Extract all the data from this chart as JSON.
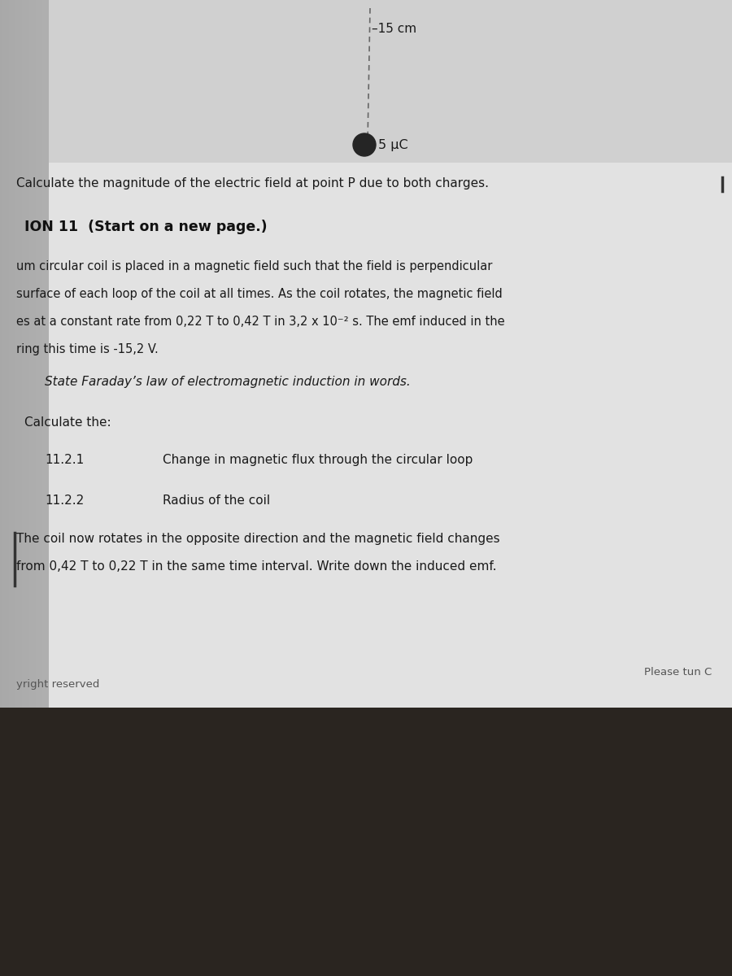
{
  "label_15cm": "–15 cm",
  "label_5uC": "5 μC",
  "line1": "Calculate the magnitude of the electric field at point P due to both charges.",
  "section_header": "ION 11  (Start on a new page.)",
  "para1_lines": [
    "um circular coil is placed in a magnetic field such that the field is perpendicular",
    "surface of each loop of the coil at all times. As the coil rotates, the magnetic field",
    "es at a constant rate from 0,22 T to 0,42 T in 3,2 x 10⁻² s. The emf induced in the",
    "ring this time is -15,2 V."
  ],
  "italic_line": "State Faraday’s law of electromagnetic induction in words.",
  "calc_label": "Calculate the:",
  "sub11_num": "11.2.1",
  "sub11_text": "Change in magnetic flux through the circular loop",
  "sub12_num": "11.2.2",
  "sub12_text": "Radius of the coil",
  "last_para_lines": [
    "The coil now rotates in the opposite direction and the magnetic field changes",
    "from 0,42 T to 0,22 T in the same time interval. Write down the induced emf."
  ],
  "footer_left": "yright reserved",
  "footer_right": "Please tun C",
  "text_color": "#1a1a1a",
  "header_color": "#111111",
  "page_color": "#e2e2e2",
  "page_top_color": "#d0d0d0",
  "left_shadow_color": "#b0b0b0",
  "bottom_bg_color": "#2a2520",
  "dot_color": "#252525"
}
